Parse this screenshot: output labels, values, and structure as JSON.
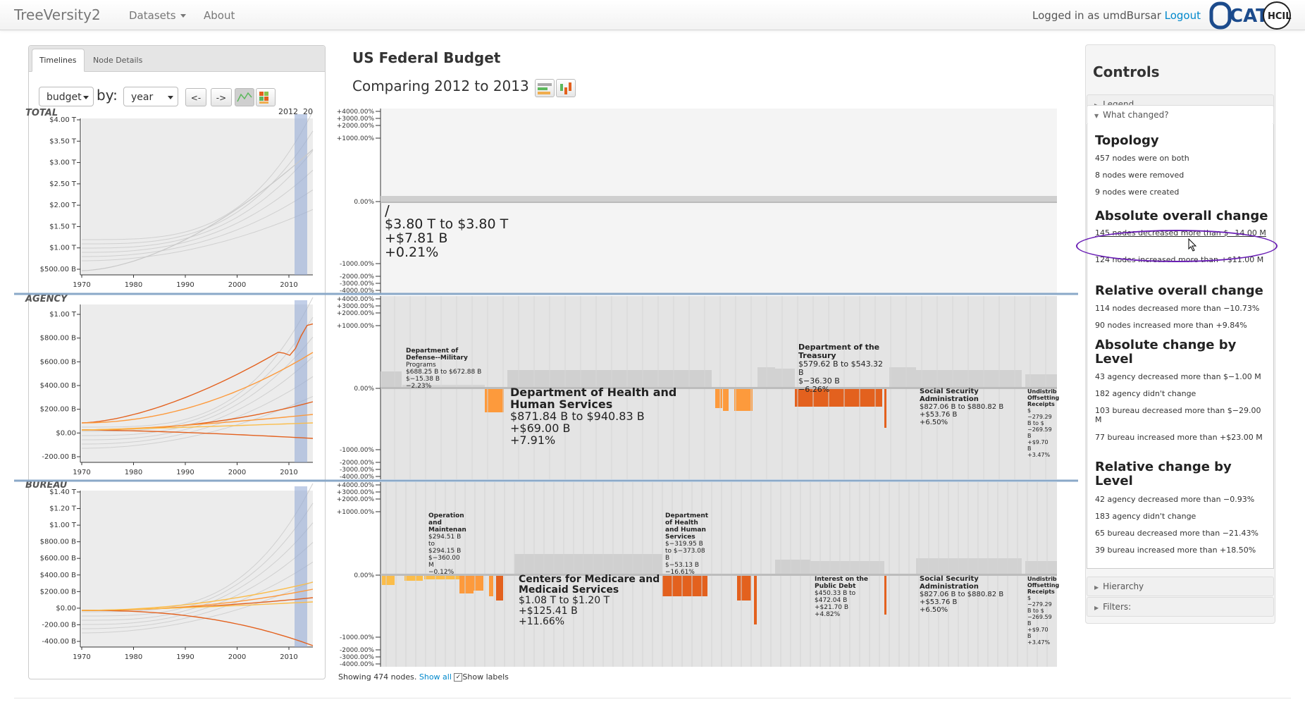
{
  "navbar": {
    "brand": "TreeVersity2",
    "datasets": "Datasets",
    "about": "About",
    "login_prefix": "Logged in as umdBursar",
    "logout": "Logout",
    "logo_text": "CATT",
    "logo_badge": "HCIL"
  },
  "left": {
    "tab_timelines": "Timelines",
    "tab_node_details": "Node Details",
    "select_value": "budget",
    "by_label": "by:",
    "select_period": "year",
    "prev_button": "<-",
    "next_button": "->",
    "year_marker": "2012",
    "year_marker2": "20",
    "x_ticks": [
      "1970",
      "1980",
      "1990",
      "2000",
      "2010"
    ],
    "panels": [
      {
        "label": "TOTAL",
        "y_ticks": [
          "$4.00 T",
          "$3.50 T",
          "$3.00 T",
          "$2.50 T",
          "$2.00 T",
          "$1.50 T",
          "$1.00 T",
          "$500.00 B"
        ]
      },
      {
        "label": "AGENCY",
        "y_ticks": [
          "$1.00 T",
          "$800.00 B",
          "$600.00 B",
          "$400.00 B",
          "$200.00 B",
          "$0.00",
          "-200.00 B"
        ]
      },
      {
        "label": "BUREAU",
        "y_ticks": [
          "$1.40 T",
          "$1.20 T",
          "$1.00 T",
          "$800.00 B",
          "$600.00 B",
          "$400.00 B",
          "$200.00 B",
          "$0.00",
          "-200.00 B",
          "-400.00 B"
        ]
      }
    ]
  },
  "center": {
    "title": "US Federal Budget",
    "subtitle": "Comparing 2012 to 2013",
    "bottom_text": "Showing 474 nodes.",
    "show_all": "Show all",
    "show_labels": "Show labels",
    "pct_top": [
      "+4000.00%",
      "+3000.00%",
      "+2000.00%",
      "+1000.00%"
    ],
    "pct_zero": "0.00%",
    "pct_bottom": [
      "-1000.00%",
      "-2000.00%",
      "-3000.00%",
      "-4000.00%"
    ],
    "root": {
      "name": "/",
      "range": "$3.80 T to $3.80 T",
      "abs": "+$7.81 B",
      "rel": "+0.21%"
    },
    "agency_labels": [
      {
        "lines": [
          "Department of",
          "Defense--Military",
          "Programs",
          "$688.25 B to $672.88 B",
          "$−15.38 B",
          "−2.23%"
        ]
      },
      {
        "lines": [
          "Department of Health and",
          "Human Services",
          "$871.84 B to $940.83 B",
          "+$69.00 B",
          "+7.91%"
        ]
      },
      {
        "lines": [
          "Department of the",
          "Treasury",
          "$579.62 B to $543.32",
          "B",
          "$−36.30 B",
          "−6.26%"
        ]
      },
      {
        "lines": [
          "Social Security",
          "Administration",
          "$827.06 B to $880.82 B",
          "+$53.76 B",
          "+6.50%"
        ]
      },
      {
        "lines": [
          "Undistrib",
          "Offsetting",
          "Receipts",
          "$",
          "−279.29",
          "B to $",
          "−269.59",
          "B",
          "+$9.70",
          "B",
          "+3.47%"
        ]
      }
    ],
    "bureau_labels": [
      {
        "lines": [
          "Operation",
          "and",
          "Maintenan",
          "$294.51 B",
          "to",
          "$294.15 B",
          "$−360.00",
          "M",
          "−0.12%"
        ]
      },
      {
        "lines": [
          "Department",
          "of Health",
          "and Human",
          "Services",
          "$−319.95 B",
          "to $−373.08",
          "B",
          "$−53.13 B",
          "−16.61%"
        ]
      },
      {
        "lines": [
          "Centers for Medicare and",
          "Medicaid Services",
          "$1.08 T to $1.20 T",
          "+$125.41 B",
          "+11.66%"
        ]
      },
      {
        "lines": [
          "Interest on the",
          "Public Debt",
          "$450.33 B to",
          "$472.04 B",
          "+$21.70 B",
          "+4.82%"
        ]
      },
      {
        "lines": [
          "Social Security",
          "Administration",
          "$827.06 B to $880.82 B",
          "+$53.76 B",
          "+6.50%"
        ]
      },
      {
        "lines": [
          "Undistrib",
          "Offsetting",
          "Receipts",
          "$",
          "−279.29",
          "B to $",
          "−269.59",
          "B",
          "+$9.70",
          "B",
          "+3.47%"
        ]
      }
    ]
  },
  "controls": {
    "title": "Controls",
    "legend": "Legend",
    "what_changed": "What changed?",
    "hierarchy": "Hierarchy",
    "filters": "Filters:",
    "topology_h": "Topology",
    "topology": [
      "457 nodes were on both",
      "8 nodes were removed",
      "9 nodes were created"
    ],
    "abs_h": "Absolute overall change",
    "abs": [
      "145 nodes decreased more than $−14.00 M",
      "124 nodes increased more than +$11.00 M"
    ],
    "rel_h": "Relative overall change",
    "rel": [
      "114 nodes decreased more than −10.73%",
      "90 nodes increased more than +9.84%"
    ],
    "abs_lvl_h": "Absolute change by Level",
    "abs_lvl": [
      "43 agency decreased more than $−1.00 M",
      "182 agency didn't change",
      "103 bureau decreased more than $−29.00 M",
      "77 bureau increased more than +$23.00 M"
    ],
    "rel_lvl_h": "Relative change by Level",
    "rel_lvl": [
      "42 agency decreased more than −0.93%",
      "183 agency didn't change",
      "65 bureau decreased more than −21.43%",
      "39 bureau increased more than +18.50%"
    ]
  },
  "colors": {
    "orange_light": "#fd9a3c",
    "orange_dark": "#e3611e",
    "yellow": "#fbbd4a",
    "grey_bar": "#d9d9d9",
    "highlight": "#8fa8d6"
  }
}
